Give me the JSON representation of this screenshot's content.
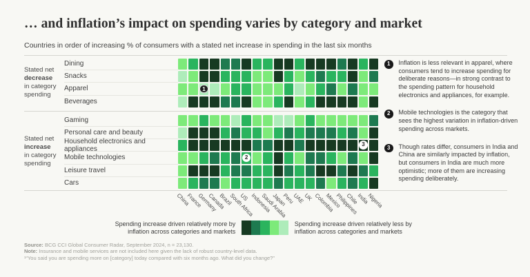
{
  "page": {
    "title": "… and inflation’s impact on spending varies by category and market",
    "subtitle": "Countries in order of increasing % of consumers with a stated net increase in spending in the last six months"
  },
  "chart_data": {
    "type": "heatmap",
    "columns": [
      "China",
      "France",
      "Germany",
      "Canada",
      "Brazil",
      "South Africa",
      "US",
      "Indonesia",
      "Saudi Arabia",
      "Japan",
      "Peru",
      "UAE",
      "UK",
      "Colombia",
      "Mexico",
      "Philippines",
      "Chile",
      "India",
      "Nigeria"
    ],
    "value_semantics": "1 = spending increase driven relatively more by inflation (darkest green); 5 = driven relatively less by inflation (lightest green)",
    "palette": [
      "#173a22",
      "#1e7a50",
      "#2ab45e",
      "#7dea7a",
      "#aeecba"
    ],
    "row_groups": [
      {
        "label_prefix": "Stated net",
        "label_bold": "decrease",
        "label_suffix": "in category spending",
        "rows": [
          {
            "label": "Dining",
            "values": [
              4,
              3,
              1,
              1,
              2,
              2,
              1,
              3,
              3,
              1,
              1,
              3,
              1,
              1,
              1,
              2,
              1,
              3,
              1
            ]
          },
          {
            "label": "Snacks",
            "values": [
              5,
              4,
              1,
              1,
              3,
              3,
              3,
              4,
              4,
              1,
              3,
              4,
              3,
              2,
              3,
              3,
              1,
              4,
              2
            ]
          },
          {
            "label": "Apparel",
            "values": [
              4,
              4,
              5,
              5,
              4,
              3,
              3,
              4,
              4,
              4,
              3,
              5,
              4,
              3,
              2,
              4,
              2,
              4,
              4
            ]
          },
          {
            "label": "Beverages",
            "values": [
              5,
              1,
              1,
              1,
              2,
              2,
              1,
              4,
              4,
              3,
              1,
              4,
              3,
              1,
              1,
              1,
              1,
              4,
              1
            ]
          }
        ]
      },
      {
        "label_prefix": "Stated net",
        "label_bold": "increase",
        "label_suffix": "in category spending",
        "rows": [
          {
            "label": "Gaming",
            "values": [
              4,
              4,
              3,
              4,
              4,
              5,
              3,
              4,
              4,
              5,
              5,
              4,
              3,
              4,
              4,
              4,
              4,
              4,
              2
            ]
          },
          {
            "label": "Personal care and beauty",
            "values": [
              5,
              1,
              1,
              1,
              3,
              2,
              3,
              3,
              4,
              3,
              2,
              3,
              2,
              2,
              2,
              3,
              2,
              4,
              1
            ]
          },
          {
            "label": "Household electronics and appliances",
            "values": [
              3,
              1,
              1,
              1,
              1,
              1,
              1,
              2,
              2,
              1,
              1,
              2,
              1,
              1,
              1,
              1,
              1,
              1,
              1
            ]
          },
          {
            "label": "Mobile technologies",
            "values": [
              4,
              4,
              3,
              2,
              3,
              2,
              3,
              4,
              3,
              1,
              3,
              4,
              2,
              2,
              3,
              4,
              2,
              4,
              1
            ]
          },
          {
            "label": "Leisure travel",
            "values": [
              4,
              1,
              1,
              1,
              3,
              2,
              2,
              3,
              3,
              1,
              2,
              3,
              2,
              1,
              1,
              2,
              1,
              2,
              3
            ]
          },
          {
            "label": "Cars",
            "values": [
              4,
              3,
              2,
              2,
              4,
              3,
              3,
              3,
              3,
              2,
              3,
              3,
              3,
              2,
              4,
              3,
              2,
              3,
              1
            ]
          }
        ]
      }
    ],
    "markers": [
      {
        "label": "1",
        "row": "Apparel",
        "column": "Germany",
        "variant": "dark"
      },
      {
        "label": "2",
        "row": "Mobile technologies",
        "column": "US",
        "variant": "light"
      },
      {
        "label": "3",
        "row": "Household electronics and appliances",
        "column": "India",
        "variant": "light"
      }
    ]
  },
  "annotations": [
    {
      "number": "1",
      "text": "Inflation is less relevant in apparel, where consumers tend to increase spending for deliberate reasons—in strong contrast to the spending pattern for household electronics and appliances, for example."
    },
    {
      "number": "2",
      "text": "Mobile technologies is the category that sees the highest variation in inflation-driven spending across markets."
    },
    {
      "number": "3",
      "text": "Though rates differ, consumers in India and China are similarly impacted by inflation, but consumers in India are much more optimistic; more of them are increasing spending deliberately."
    }
  ],
  "legend": {
    "more_label": "Spending increase driven relatively more by inflation across categories and markets",
    "less_label": "Spending increase driven relatively less by inflation across categories and markets"
  },
  "footer": {
    "lines": [
      {
        "bold": "Source:",
        "text": " BCG CCI Global Consumer Radar, September 2024, n = 23,130."
      },
      {
        "bold": "Note:",
        "text": " Insurance and mobile services are not included here given the lack of robust country-level data."
      },
      {
        "bold": "",
        "text": "¹“You said you are spending more on [category] today compared with six months ago. What did you change?”"
      }
    ]
  }
}
